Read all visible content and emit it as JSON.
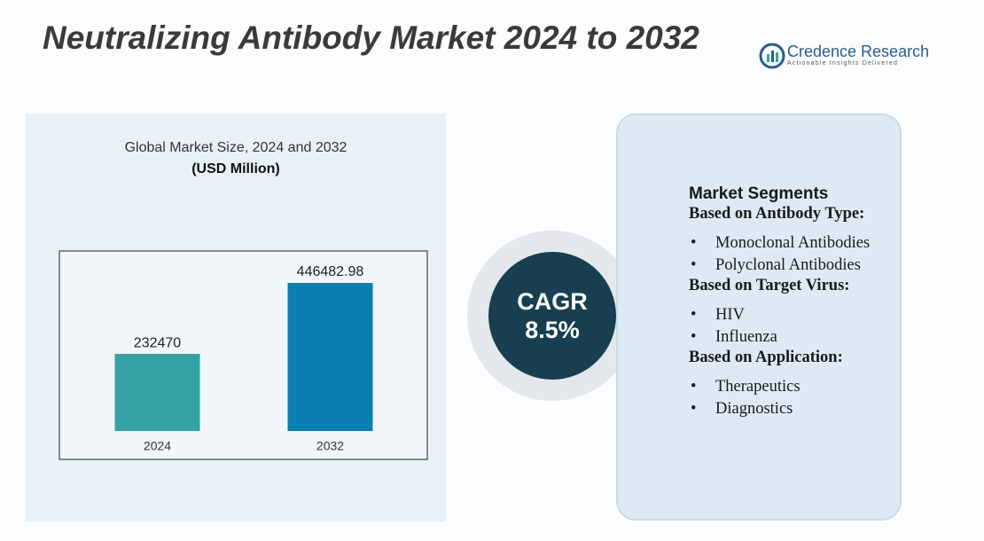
{
  "header": {
    "title": "Neutralizing Antibody Market 2024 to 2032",
    "logo_name": "Credence Research",
    "logo_tagline": "Actionable Insights Delivered"
  },
  "chart_data": {
    "type": "bar",
    "title": "Global Market Size,  2024 and 2032",
    "subtitle": "(USD Million)",
    "categories": [
      "2024",
      "2032"
    ],
    "values": [
      232470,
      446482.98
    ],
    "colors": [
      "#35a3a3",
      "#0b7fb0"
    ],
    "ylim": [
      0,
      500000
    ]
  },
  "cagr": {
    "label": "CAGR",
    "value": "8.5%"
  },
  "segments": {
    "title": "Market Segments",
    "groups": [
      {
        "heading": "Based on Antibody Type:",
        "items": [
          "Monoclonal Antibodies",
          "Polyclonal Antibodies"
        ]
      },
      {
        "heading": "Based on Target Virus:",
        "items": [
          "HIV",
          "Influenza"
        ]
      },
      {
        "heading": "Based on Application:",
        "items": [
          "Therapeutics",
          "Diagnostics"
        ]
      }
    ]
  }
}
